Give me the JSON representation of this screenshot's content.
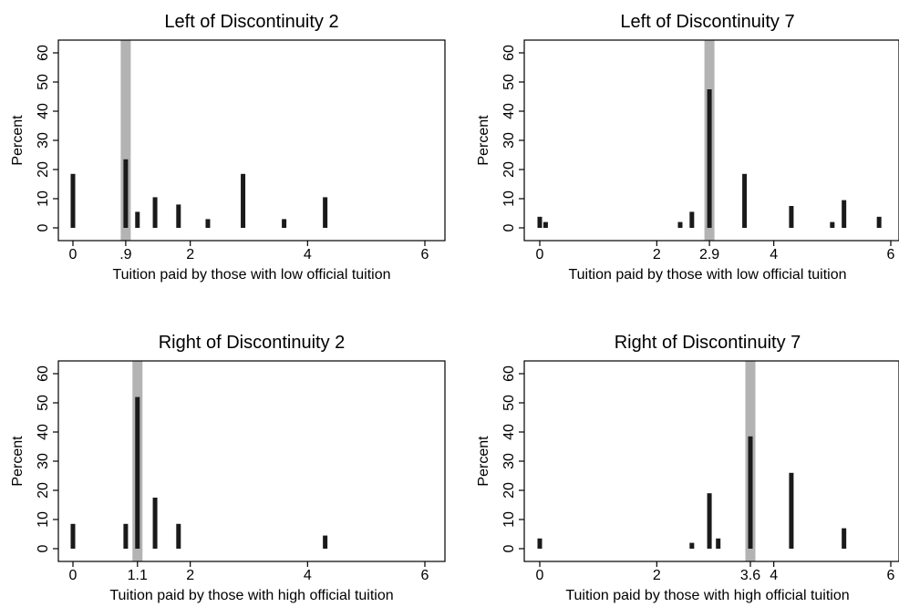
{
  "chart_data": [
    {
      "type": "bar",
      "title": "Left of Discontinuity 2",
      "xlabel": "Tuition paid by those with low official tuition",
      "ylabel": "Percent",
      "xlim": [
        0,
        6
      ],
      "ylim": [
        0,
        60
      ],
      "x_ticks": [
        "0",
        ".9",
        "2",
        "4",
        "6"
      ],
      "x_tick_values": [
        0,
        0.9,
        2,
        4,
        6
      ],
      "y_ticks": [
        "0",
        "10",
        "20",
        "30",
        "40",
        "50",
        "60"
      ],
      "highlight_x": 0.9,
      "grid": false,
      "x": [
        0,
        0.9,
        1.1,
        1.4,
        1.8,
        2.3,
        2.9,
        3.6,
        4.3
      ],
      "values": [
        18.5,
        23.5,
        5.5,
        10.5,
        8,
        3,
        18.5,
        3,
        10.5
      ]
    },
    {
      "type": "bar",
      "title": "Left of Discontinuity 7",
      "xlabel": "Tuition paid by those with low official tuition",
      "ylabel": "Percent",
      "xlim": [
        0,
        6
      ],
      "ylim": [
        0,
        60
      ],
      "x_ticks": [
        "0",
        "2",
        "2.9",
        "4",
        "6"
      ],
      "x_tick_values": [
        0,
        2,
        2.9,
        4,
        6
      ],
      "y_ticks": [
        "0",
        "10",
        "20",
        "30",
        "40",
        "50",
        "60"
      ],
      "highlight_x": 2.9,
      "grid": false,
      "x": [
        0,
        0.1,
        2.4,
        2.6,
        2.9,
        3.5,
        4.3,
        5.0,
        5.2,
        5.8
      ],
      "values": [
        3.8,
        2,
        2,
        5.5,
        47.5,
        18.5,
        7.5,
        2,
        9.5,
        3.8
      ]
    },
    {
      "type": "bar",
      "title": "Right of Discontinuity 2",
      "xlabel": "Tuition paid by those with high official tuition",
      "ylabel": "Percent",
      "xlim": [
        0,
        6
      ],
      "ylim": [
        0,
        60
      ],
      "x_ticks": [
        "0",
        "1.1",
        "2",
        "4",
        "6"
      ],
      "x_tick_values": [
        0,
        1.1,
        2,
        4,
        6
      ],
      "y_ticks": [
        "0",
        "10",
        "20",
        "30",
        "40",
        "50",
        "60"
      ],
      "highlight_x": 1.1,
      "grid": false,
      "x": [
        0,
        0.9,
        1.1,
        1.4,
        1.8,
        4.3
      ],
      "values": [
        8.5,
        8.5,
        52,
        17.5,
        8.5,
        4.5
      ]
    },
    {
      "type": "bar",
      "title": "Right of Discontinuity 7",
      "xlabel": "Tuition paid by those with high official tuition",
      "ylabel": "Percent",
      "xlim": [
        0,
        6
      ],
      "ylim": [
        0,
        60
      ],
      "x_ticks": [
        "0",
        "2",
        "3.6",
        "4",
        "6"
      ],
      "x_tick_values": [
        0,
        2,
        3.6,
        4,
        6
      ],
      "y_ticks": [
        "0",
        "10",
        "20",
        "30",
        "40",
        "50",
        "60"
      ],
      "highlight_x": 3.6,
      "grid": false,
      "x": [
        0,
        2.6,
        2.9,
        3.05,
        3.6,
        4.3,
        5.2
      ],
      "values": [
        3.5,
        2,
        19,
        3.5,
        38.5,
        26,
        7
      ]
    }
  ]
}
